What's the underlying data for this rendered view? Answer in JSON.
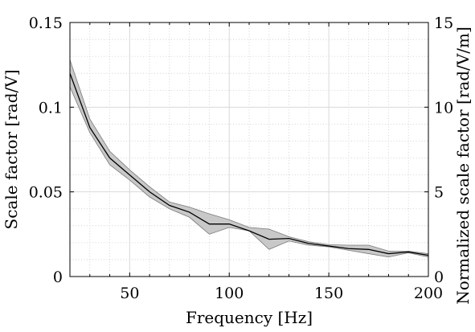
{
  "chart_data": {
    "type": "line",
    "xlabel": "Frequency [Hz]",
    "ylabel": "Scale factor [rad/V]",
    "y2label": "Normalized scale factor [rad/V/m]",
    "xlim": [
      20,
      200
    ],
    "ylim": [
      0,
      0.15
    ],
    "y2lim": [
      0,
      15
    ],
    "x_ticks": [
      50,
      100,
      150,
      200
    ],
    "x_tick_labels": [
      "50",
      "100",
      "150",
      "200"
    ],
    "y_ticks": [
      0,
      0.05,
      0.1,
      0.15
    ],
    "y_tick_labels": [
      "0",
      "0.05",
      "0.1",
      "0.15"
    ],
    "y2_ticks": [
      0,
      5,
      10,
      15
    ],
    "y2_tick_labels": [
      "0",
      "5",
      "10",
      "15"
    ],
    "grid": true,
    "minor_grid": true,
    "series": [
      {
        "x": [
          20,
          30,
          40,
          50,
          60,
          70,
          80,
          90,
          100,
          110,
          120,
          130,
          140,
          150,
          160,
          170,
          180,
          190,
          200
        ],
        "values": [
          0.12,
          0.088,
          0.07,
          0.06,
          0.05,
          0.042,
          0.038,
          0.031,
          0.031,
          0.027,
          0.022,
          0.0225,
          0.0195,
          0.018,
          0.0165,
          0.016,
          0.0135,
          0.0145,
          0.0125
        ],
        "upper": [
          0.128,
          0.093,
          0.074,
          0.063,
          0.053,
          0.044,
          0.041,
          0.037,
          0.0335,
          0.029,
          0.028,
          0.0235,
          0.0205,
          0.0188,
          0.0185,
          0.0185,
          0.015,
          0.015,
          0.0135
        ],
        "lower": [
          0.112,
          0.085,
          0.066,
          0.057,
          0.047,
          0.04,
          0.035,
          0.025,
          0.029,
          0.027,
          0.016,
          0.021,
          0.0185,
          0.0175,
          0.0155,
          0.0135,
          0.0115,
          0.014,
          0.0115
        ]
      }
    ],
    "colors": {
      "line": "#000000",
      "band_fill": "#c8c8c8",
      "band_edge": "#7a7a7a",
      "grid": "#d8d8d8",
      "minor_grid": "#c9c9c9"
    }
  }
}
